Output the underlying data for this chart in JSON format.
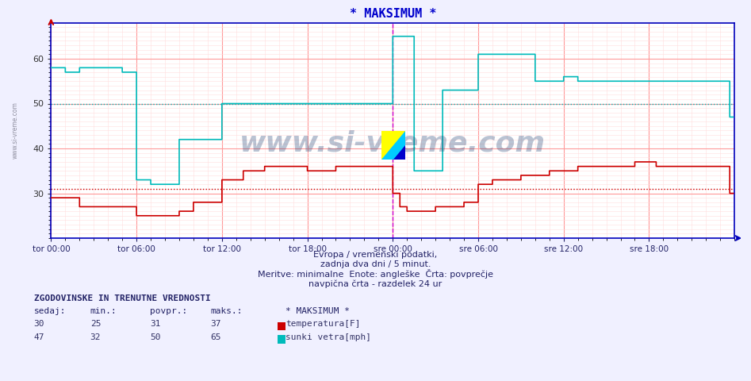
{
  "title": "* MAKSIMUM *",
  "title_color": "#0000cc",
  "bg_color": "#f0f0ff",
  "plot_bg_color": "#ffffff",
  "grid_color_major": "#ff9999",
  "grid_color_minor": "#ffdddd",
  "xlabel_text1": "Evropa / vremenski podatki,",
  "xlabel_text2": "zadnja dva dni / 5 minut.",
  "xlabel_text3": "Meritve: minimalne  Enote: angleške  Črta: povprečje",
  "xlabel_text4": "navpična črta - razdelek 24 ur",
  "xticklabels": [
    "tor 00:00",
    "tor 06:00",
    "tor 12:00",
    "tor 18:00",
    "sre 00:00",
    "sre 06:00",
    "sre 12:00",
    "sre 18:00"
  ],
  "xtick_positions": [
    0,
    72,
    144,
    216,
    288,
    360,
    432,
    504
  ],
  "total_points": 576,
  "ymin": 20,
  "ymax": 68,
  "yticks": [
    30,
    40,
    50,
    60
  ],
  "temp_color": "#cc0000",
  "wind_color": "#00bbbb",
  "avg_temp": 31,
  "avg_wind": 50,
  "watermark": "www.si-vreme.com",
  "watermark_color": "#1a3a6e",
  "watermark_alpha": 0.3,
  "legend_title": "* MAKSIMUM *",
  "stats_title": "ZGODOVINSKE IN TRENUTNE VREDNOSTI",
  "stats_headers": [
    "sedaj:",
    "min.:",
    "povpr.:",
    "maks.:"
  ],
  "stats_temp": [
    30,
    25,
    31,
    37
  ],
  "stats_wind": [
    47,
    32,
    50,
    65
  ],
  "stats_labels": [
    "temperatura[F]",
    "sunki vetra[mph]"
  ],
  "vline_x": 288,
  "vline_color": "#cc00cc",
  "side_label": "www.si-vreme.com"
}
